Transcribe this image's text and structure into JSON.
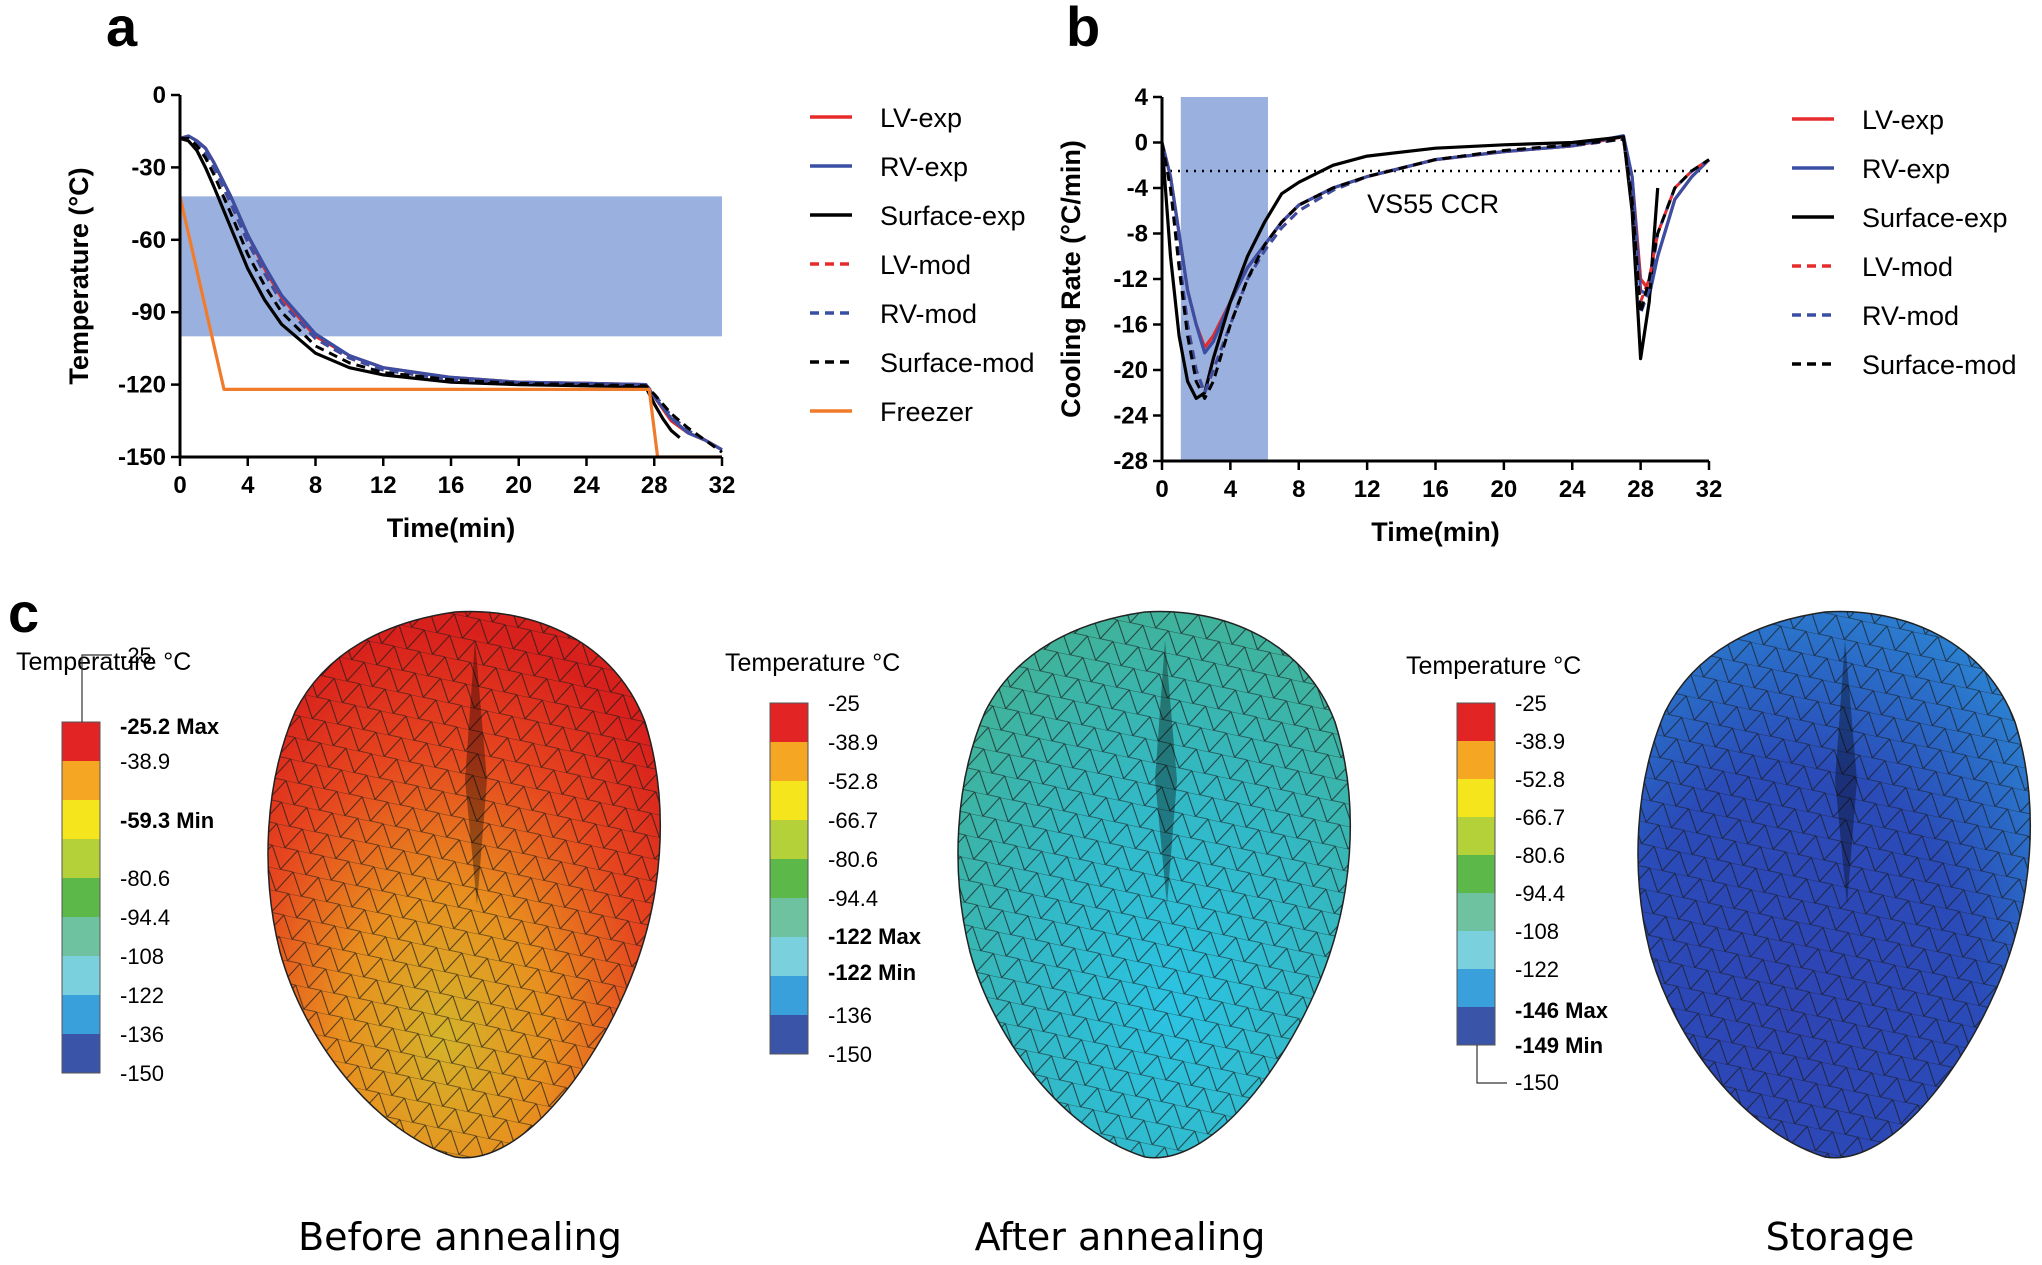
{
  "panels": {
    "a": "a",
    "b": "b",
    "c": "c"
  },
  "chart_data": [
    {
      "type": "line",
      "panel": "a",
      "xlabel": "Time(min)",
      "ylabel": "Temperature (°C)",
      "xlim": [
        0,
        32
      ],
      "ylim": [
        -150,
        0
      ],
      "xticks": [
        "0",
        "4",
        "8",
        "12",
        "16",
        "20",
        "24",
        "28",
        "32"
      ],
      "yticks": [
        "0",
        "-30",
        "-60",
        "-90",
        "-120",
        "-150"
      ],
      "shaded_band": {
        "y_from": -100,
        "y_to": -42,
        "color": "#8fa9dc"
      },
      "series": [
        {
          "name": "LV-exp",
          "color": "#e52b2b",
          "dash": "solid",
          "x": [
            0,
            0.5,
            1,
            1.5,
            2,
            3,
            4,
            5,
            6,
            8,
            10,
            12,
            16,
            20,
            24,
            27.5,
            28,
            29,
            30,
            31,
            32
          ],
          "y": [
            -18,
            -17,
            -19,
            -22,
            -28,
            -42,
            -58,
            -72,
            -84,
            -100,
            -108,
            -113,
            -117,
            -119,
            -119.5,
            -120,
            -125,
            -135,
            -140,
            -143,
            -147
          ]
        },
        {
          "name": "RV-exp",
          "color": "#3a4fa3",
          "dash": "solid",
          "x": [
            0,
            0.5,
            1,
            1.5,
            2,
            3,
            4,
            5,
            6,
            8,
            10,
            12,
            16,
            20,
            24,
            27.5,
            28,
            29,
            30,
            31,
            32
          ],
          "y": [
            -18,
            -17,
            -19,
            -22,
            -28,
            -42,
            -58,
            -71,
            -83,
            -99,
            -108,
            -113,
            -117,
            -119,
            -119.5,
            -120,
            -125,
            -134,
            -140,
            -143,
            -147
          ]
        },
        {
          "name": "Surface-exp",
          "color": "#000000",
          "dash": "solid",
          "x": [
            0,
            0.5,
            1,
            1.5,
            2,
            3,
            4,
            5,
            6,
            8,
            10,
            12,
            16,
            20,
            24,
            27.5,
            28,
            28.5,
            29,
            29.5
          ],
          "y": [
            -18,
            -19,
            -23,
            -30,
            -38,
            -55,
            -72,
            -85,
            -95,
            -107,
            -113,
            -116,
            -119,
            -120,
            -120.5,
            -121,
            -128,
            -134,
            -139,
            -142
          ]
        },
        {
          "name": "LV-mod",
          "color": "#e52b2b",
          "dash": "dash",
          "x": [
            0,
            0.5,
            1,
            1.5,
            2,
            3,
            4,
            5,
            6,
            8,
            10,
            12,
            16,
            20,
            24,
            27.5,
            28,
            29,
            30,
            31,
            32
          ],
          "y": [
            -18,
            -18,
            -20,
            -24,
            -30,
            -45,
            -61,
            -74,
            -86,
            -101,
            -109,
            -114,
            -118,
            -119,
            -119.5,
            -120,
            -124,
            -133,
            -139,
            -143,
            -147
          ]
        },
        {
          "name": "RV-mod",
          "color": "#3a4fa3",
          "dash": "dash",
          "x": [
            0,
            0.5,
            1,
            1.5,
            2,
            3,
            4,
            5,
            6,
            8,
            10,
            12,
            16,
            20,
            24,
            27.5,
            28,
            29,
            30,
            31,
            32
          ],
          "y": [
            -18,
            -18,
            -20,
            -24,
            -30,
            -45,
            -61,
            -74,
            -86,
            -101,
            -109,
            -114,
            -118,
            -119,
            -119.5,
            -120,
            -124,
            -133,
            -139,
            -143,
            -147
          ]
        },
        {
          "name": "Surface-mod",
          "color": "#000000",
          "dash": "dash",
          "x": [
            0,
            0.5,
            1,
            1.5,
            2,
            3,
            4,
            5,
            6,
            8,
            10,
            12,
            16,
            20,
            24,
            27.5,
            28,
            29,
            30,
            31,
            32
          ],
          "y": [
            -18,
            -18,
            -21,
            -26,
            -33,
            -49,
            -66,
            -79,
            -90,
            -104,
            -111,
            -115,
            -118,
            -119.5,
            -120,
            -120.5,
            -124,
            -132,
            -138,
            -143,
            -148
          ]
        },
        {
          "name": "Freezer",
          "color": "#f07c2b",
          "dash": "solid",
          "x": [
            0,
            2.6,
            27.7,
            28.2,
            32
          ],
          "y": [
            -42,
            -122,
            -122,
            -150,
            -150
          ]
        }
      ]
    },
    {
      "type": "line",
      "panel": "b",
      "xlabel": "Time(min)",
      "ylabel": "Cooling Rate (°C/min)",
      "xlim": [
        0,
        32
      ],
      "ylim": [
        -28,
        4
      ],
      "xticks": [
        "0",
        "4",
        "8",
        "12",
        "16",
        "20",
        "24",
        "28",
        "32"
      ],
      "yticks": [
        "4",
        "0",
        "-4",
        "-8",
        "-12",
        "-16",
        "-20",
        "-24",
        "-28"
      ],
      "shaded_band": {
        "x_from": 1.1,
        "x_to": 6.2,
        "color": "#8fa9dc"
      },
      "ccr_line": {
        "y": -2.5,
        "label": "VS55 CCR"
      },
      "series": [
        {
          "name": "LV-exp",
          "color": "#e52b2b",
          "dash": "solid",
          "x": [
            0,
            0.5,
            1,
            1.5,
            2,
            2.5,
            3,
            4,
            5,
            6,
            7,
            8,
            10,
            12,
            16,
            20,
            24,
            27,
            27.5,
            28,
            28.5,
            29,
            30,
            31,
            32
          ],
          "y": [
            0,
            -3,
            -8,
            -13,
            -16,
            -18,
            -17,
            -14,
            -11,
            -9,
            -7,
            -5.5,
            -4,
            -3,
            -1.5,
            -0.8,
            -0.3,
            0.5,
            -3,
            -12,
            -13,
            -10,
            -5,
            -3,
            -1.5
          ]
        },
        {
          "name": "RV-exp",
          "color": "#3a4fa3",
          "dash": "solid",
          "x": [
            0,
            0.5,
            1,
            1.5,
            2,
            2.5,
            3,
            4,
            5,
            6,
            7,
            8,
            10,
            12,
            16,
            20,
            24,
            27,
            27.5,
            28,
            28.5,
            29,
            30,
            31,
            32
          ],
          "y": [
            0,
            -3,
            -8,
            -13,
            -16,
            -18.5,
            -17.5,
            -14,
            -11,
            -9,
            -7,
            -5.5,
            -4,
            -3,
            -1.5,
            -0.8,
            -0.3,
            0.6,
            -3,
            -13,
            -13.5,
            -10,
            -5,
            -3,
            -1.5
          ]
        },
        {
          "name": "Surface-exp",
          "color": "#000000",
          "dash": "solid",
          "x": [
            0,
            0.5,
            1,
            1.5,
            2,
            2.5,
            3,
            4,
            5,
            6,
            7,
            8,
            10,
            12,
            16,
            20,
            24,
            27,
            27.5,
            28,
            28.5,
            29
          ],
          "y": [
            0,
            -10,
            -17,
            -21,
            -22.5,
            -22,
            -19,
            -14,
            -10,
            -7,
            -4.5,
            -3.5,
            -2,
            -1.2,
            -0.5,
            -0.2,
            0,
            0.5,
            -6,
            -19,
            -14,
            -4
          ]
        },
        {
          "name": "LV-mod",
          "color": "#e52b2b",
          "dash": "dash",
          "x": [
            0,
            0.5,
            1,
            1.5,
            2,
            2.5,
            3,
            4,
            5,
            6,
            7,
            8,
            10,
            12,
            16,
            20,
            24,
            27,
            27.5,
            28,
            28.5,
            29,
            30,
            31,
            32
          ],
          "y": [
            0,
            -4,
            -10,
            -16,
            -20,
            -22,
            -20,
            -16,
            -12,
            -9.5,
            -7.5,
            -6,
            -4.2,
            -3,
            -1.5,
            -0.8,
            -0.3,
            0.3,
            -5,
            -14,
            -12,
            -8,
            -4,
            -2.5,
            -1.5
          ]
        },
        {
          "name": "RV-mod",
          "color": "#3a4fa3",
          "dash": "dash",
          "x": [
            0,
            0.5,
            1,
            1.5,
            2,
            2.5,
            3,
            4,
            5,
            6,
            7,
            8,
            10,
            12,
            16,
            20,
            24,
            27,
            27.5,
            28,
            28.5,
            29,
            30,
            31,
            32
          ],
          "y": [
            0,
            -4,
            -10,
            -16,
            -20,
            -22,
            -20,
            -16,
            -12,
            -9.5,
            -7.5,
            -6,
            -4.2,
            -3,
            -1.5,
            -0.8,
            -0.3,
            0.3,
            -5,
            -15,
            -13,
            -8,
            -4,
            -2.5,
            -1.5
          ]
        },
        {
          "name": "Surface-mod",
          "color": "#000000",
          "dash": "dash",
          "x": [
            0,
            0.5,
            1,
            1.5,
            2,
            2.5,
            3,
            4,
            5,
            6,
            7,
            8,
            10,
            12,
            16,
            20,
            24,
            27,
            27.5,
            28,
            28.5,
            29,
            30,
            31,
            32
          ],
          "y": [
            0,
            -4,
            -11,
            -17,
            -21,
            -22.5,
            -21,
            -16,
            -12,
            -9,
            -7,
            -5.5,
            -4,
            -3,
            -1.5,
            -0.7,
            -0.2,
            0.3,
            -5,
            -15,
            -12,
            -8,
            -4,
            -2.5,
            -1.5
          ]
        }
      ]
    }
  ],
  "colorbar": {
    "title": "Temperature °C",
    "segment_colors": [
      "#e32424",
      "#f5a623",
      "#f5e51c",
      "#b5d13a",
      "#5db84a",
      "#6ec2a0",
      "#7ad0dc",
      "#3aa0dc",
      "#3a55a8"
    ],
    "labels": [
      "-25",
      "-38.9",
      "-52.8",
      "-66.7",
      "-80.6",
      "-94.4",
      "-108",
      "-122",
      "-136",
      "-150"
    ]
  },
  "heatmaps": [
    {
      "caption": "Before annealing",
      "max_label": "-25.2 Max",
      "min_label": "-59.3 Min",
      "labels": [
        "-25",
        "-38.9",
        "-80.6",
        "-94.4",
        "-108",
        "-122",
        "-136",
        "-150"
      ]
    },
    {
      "caption": "After annealing",
      "max_label": "-122 Max",
      "min_label": "-122 Min",
      "labels": [
        "-25",
        "-38.9",
        "-52.8",
        "-66.7",
        "-80.6",
        "-94.4",
        "-136",
        "-150"
      ]
    },
    {
      "caption": "Storage",
      "max_label": "-146 Max",
      "min_label": "-149 Min",
      "labels": [
        "-25",
        "-38.9",
        "-52.8",
        "-66.7",
        "-80.6",
        "-94.4",
        "-108",
        "-122",
        "-150"
      ]
    }
  ]
}
